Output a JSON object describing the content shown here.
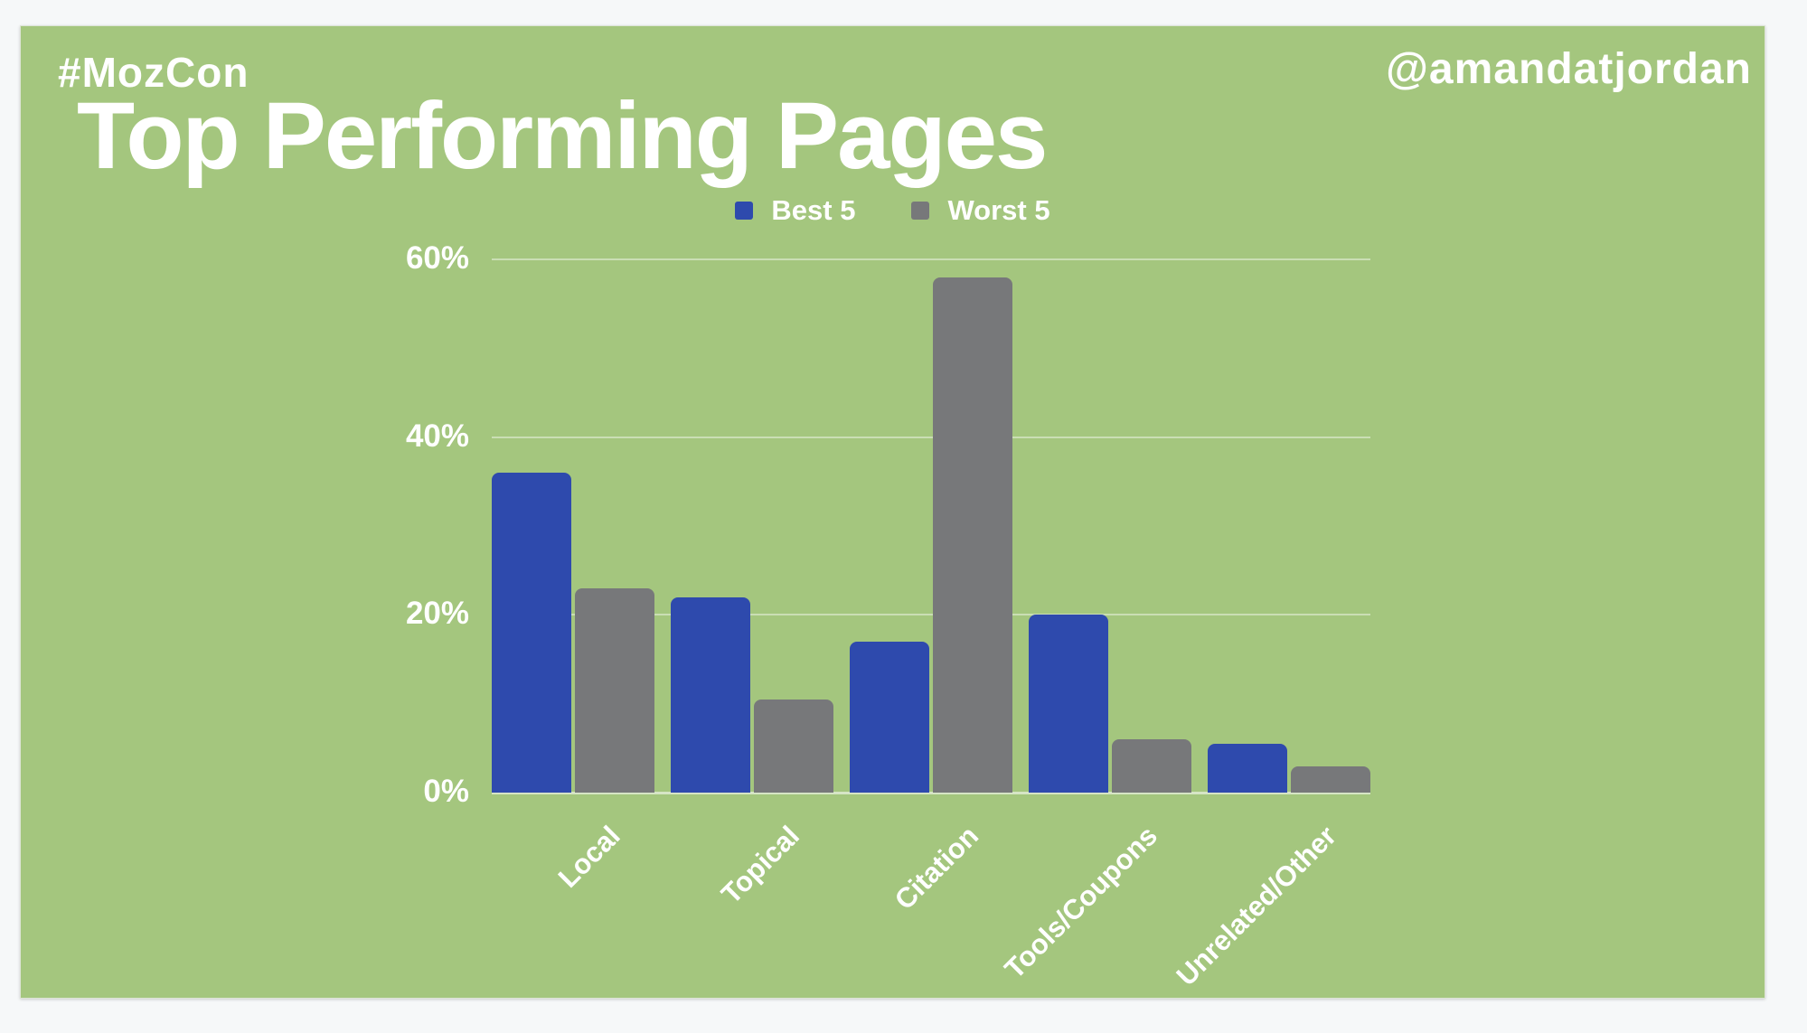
{
  "slide": {
    "hashtag": "#MozCon",
    "title": "Top Performing Pages",
    "handle": "@amandatjordan",
    "colors": {
      "slide_background": "#a4c67e",
      "page_background": "#f6f8f9",
      "text": "#ffffff",
      "best_series": "#2e4aad",
      "worst_series": "#77787a"
    }
  },
  "chart_data": {
    "type": "bar",
    "title": "Top Performing Pages",
    "categories": [
      "Local",
      "Topical",
      "Citation",
      "Tools/Coupons",
      "Unrelated/Other"
    ],
    "series": [
      {
        "name": "Best 5",
        "color": "#2e4aad",
        "values": [
          36,
          22,
          17,
          20,
          5.5
        ]
      },
      {
        "name": "Worst 5",
        "color": "#77787a",
        "values": [
          23,
          10.5,
          58,
          6,
          3
        ]
      }
    ],
    "xlabel": "",
    "ylabel": "",
    "ylim": [
      0,
      60
    ],
    "yticks": [
      {
        "value": 0,
        "label": "0%"
      },
      {
        "value": 20,
        "label": "20%"
      },
      {
        "value": 40,
        "label": "40%"
      },
      {
        "value": 60,
        "label": "60%"
      }
    ],
    "grid": true,
    "legend_position": "top-center",
    "x_tick_rotation_deg": -45
  }
}
